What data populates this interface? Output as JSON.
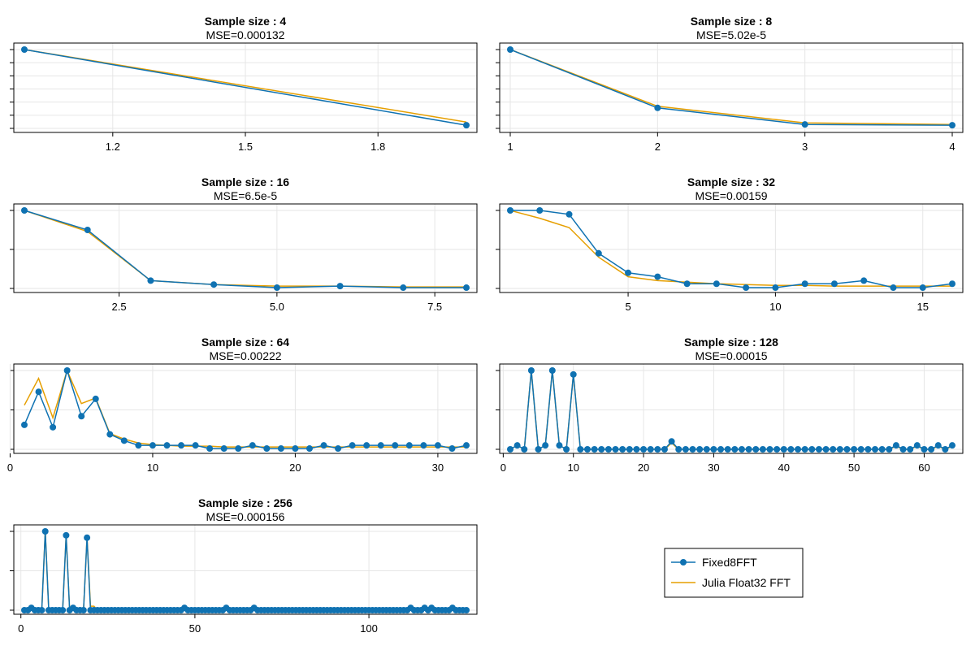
{
  "colors": {
    "fixed": "#0f72b2",
    "julia": "#e69f00",
    "grid": "#e6e6e6",
    "frame": "#000000"
  },
  "legend": {
    "entries": [
      "Fixed8FFT",
      "Julia Float32 FFT"
    ]
  },
  "chart_data": [
    {
      "type": "line",
      "title": "Sample size : 4",
      "subtitle": "MSE=0.000132",
      "xlim": [
        1,
        2
      ],
      "ylim": [
        0,
        1
      ],
      "x_ticks": [
        1.2,
        1.5,
        1.8
      ],
      "x_tick_labels": [
        "1.2",
        "1.5",
        "1.8"
      ],
      "grid": true,
      "x": [
        1,
        2
      ],
      "series": [
        {
          "name": "Fixed8FFT",
          "values": [
            1.0,
            0.04
          ]
        },
        {
          "name": "Julia Float32 FFT",
          "values": [
            1.0,
            0.08
          ]
        }
      ]
    },
    {
      "type": "line",
      "title": "Sample size : 8",
      "subtitle": "MSE=5.02e-5",
      "xlim": [
        1,
        4
      ],
      "ylim": [
        0,
        1
      ],
      "x_ticks": [
        1,
        2,
        3,
        4
      ],
      "x_tick_labels": [
        "1",
        "2",
        "3",
        "4"
      ],
      "grid": true,
      "x": [
        1,
        2,
        3,
        4
      ],
      "series": [
        {
          "name": "Fixed8FFT",
          "values": [
            1.0,
            0.26,
            0.05,
            0.04
          ]
        },
        {
          "name": "Julia Float32 FFT",
          "values": [
            1.0,
            0.28,
            0.07,
            0.05
          ]
        }
      ]
    },
    {
      "type": "line",
      "title": "Sample size : 16",
      "subtitle": "MSE=6.5e-5",
      "xlim": [
        1,
        8
      ],
      "ylim": [
        0,
        1
      ],
      "x_ticks": [
        2.5,
        5.0,
        7.5
      ],
      "x_tick_labels": [
        "2.5",
        "5.0",
        "7.5"
      ],
      "grid": true,
      "x": [
        1,
        2,
        3,
        4,
        5,
        6,
        7,
        8
      ],
      "series": [
        {
          "name": "Fixed8FFT",
          "values": [
            1.0,
            0.75,
            0.1,
            0.05,
            0.01,
            0.03,
            0.01,
            0.01
          ]
        },
        {
          "name": "Julia Float32 FFT",
          "values": [
            1.0,
            0.73,
            0.1,
            0.05,
            0.03,
            0.03,
            0.02,
            0.02
          ]
        }
      ]
    },
    {
      "type": "line",
      "title": "Sample size : 32",
      "subtitle": "MSE=0.00159",
      "xlim": [
        1,
        16
      ],
      "ylim": [
        0,
        1
      ],
      "x_ticks": [
        5,
        10,
        15
      ],
      "x_tick_labels": [
        "5",
        "10",
        "15"
      ],
      "grid": true,
      "x": [
        1,
        2,
        3,
        4,
        5,
        6,
        7,
        8,
        9,
        10,
        11,
        12,
        13,
        14,
        15,
        16
      ],
      "series": [
        {
          "name": "Fixed8FFT",
          "values": [
            1.0,
            1.0,
            0.95,
            0.45,
            0.2,
            0.15,
            0.06,
            0.06,
            0.01,
            0.01,
            0.06,
            0.06,
            0.1,
            0.01,
            0.01,
            0.06
          ]
        },
        {
          "name": "Julia Float32 FFT",
          "values": [
            1.0,
            0.9,
            0.78,
            0.4,
            0.15,
            0.1,
            0.08,
            0.06,
            0.05,
            0.04,
            0.04,
            0.03,
            0.03,
            0.03,
            0.03,
            0.03
          ]
        }
      ]
    },
    {
      "type": "line",
      "title": "Sample size : 64",
      "subtitle": "MSE=0.00222",
      "xlim": [
        1,
        32
      ],
      "ylim": [
        0,
        1
      ],
      "x_ticks": [
        0,
        10,
        20,
        30
      ],
      "x_tick_labels": [
        "0",
        "10",
        "20",
        "30"
      ],
      "grid": true,
      "x": [
        1,
        2,
        3,
        4,
        5,
        6,
        7,
        8,
        9,
        10,
        11,
        12,
        13,
        14,
        15,
        16,
        17,
        18,
        19,
        20,
        21,
        22,
        23,
        24,
        25,
        26,
        27,
        28,
        29,
        30,
        31,
        32
      ],
      "series": [
        {
          "name": "Fixed8FFT",
          "values": [
            0.31,
            0.73,
            0.28,
            1.0,
            0.42,
            0.64,
            0.19,
            0.11,
            0.05,
            0.05,
            0.05,
            0.05,
            0.05,
            0.01,
            0.01,
            0.01,
            0.05,
            0.01,
            0.01,
            0.01,
            0.01,
            0.05,
            0.01,
            0.05,
            0.05,
            0.05,
            0.05,
            0.05,
            0.05,
            0.05,
            0.01,
            0.05
          ]
        },
        {
          "name": "Julia Float32 FFT",
          "values": [
            0.56,
            0.9,
            0.4,
            1.0,
            0.58,
            0.65,
            0.2,
            0.13,
            0.08,
            0.06,
            0.05,
            0.04,
            0.04,
            0.04,
            0.03,
            0.03,
            0.03,
            0.03,
            0.03,
            0.03,
            0.03,
            0.03,
            0.03,
            0.03,
            0.03,
            0.03,
            0.03,
            0.03,
            0.03,
            0.03,
            0.03,
            0.03
          ]
        }
      ]
    },
    {
      "type": "line",
      "title": "Sample size : 128",
      "subtitle": "MSE=0.00015",
      "xlim": [
        1,
        64
      ],
      "ylim": [
        0,
        1
      ],
      "x_ticks": [
        0,
        10,
        20,
        30,
        40,
        50,
        60
      ],
      "x_tick_labels": [
        "0",
        "10",
        "20",
        "30",
        "40",
        "50",
        "60"
      ],
      "grid": true,
      "x": [
        1,
        2,
        3,
        4,
        5,
        6,
        7,
        8,
        9,
        10,
        11,
        12,
        13,
        14,
        15,
        16,
        17,
        18,
        19,
        20,
        21,
        22,
        23,
        24,
        25,
        26,
        27,
        28,
        29,
        30,
        31,
        32,
        33,
        34,
        35,
        36,
        37,
        38,
        39,
        40,
        41,
        42,
        43,
        44,
        45,
        46,
        47,
        48,
        49,
        50,
        51,
        52,
        53,
        54,
        55,
        56,
        57,
        58,
        59,
        60,
        61,
        62,
        63,
        64
      ],
      "series": [
        {
          "name": "Fixed8FFT",
          "values": [
            0.0,
            0.05,
            0.0,
            1.0,
            0.0,
            0.05,
            1.0,
            0.05,
            0.0,
            0.95,
            0.0,
            0.0,
            0.0,
            0.0,
            0.0,
            0.0,
            0.0,
            0.0,
            0.0,
            0.0,
            0.0,
            0.0,
            0.0,
            0.1,
            0.0,
            0.0,
            0.0,
            0.0,
            0.0,
            0.0,
            0.0,
            0.0,
            0.0,
            0.0,
            0.0,
            0.0,
            0.0,
            0.0,
            0.0,
            0.0,
            0.0,
            0.0,
            0.0,
            0.0,
            0.0,
            0.0,
            0.0,
            0.0,
            0.0,
            0.0,
            0.0,
            0.0,
            0.0,
            0.0,
            0.0,
            0.05,
            0.0,
            0.0,
            0.05,
            0.0,
            0.0,
            0.05,
            0.0,
            0.05
          ]
        },
        {
          "name": "Julia Float32 FFT",
          "values": [
            0.0,
            0.05,
            0.0,
            1.0,
            0.0,
            0.05,
            1.0,
            0.05,
            0.0,
            0.95,
            0.0,
            0.0,
            0.0,
            0.0,
            0.0,
            0.0,
            0.0,
            0.0,
            0.0,
            0.0,
            0.0,
            0.0,
            0.0,
            0.08,
            0.0,
            0.0,
            0.0,
            0.0,
            0.0,
            0.0,
            0.0,
            0.0,
            0.0,
            0.0,
            0.0,
            0.0,
            0.0,
            0.0,
            0.0,
            0.0,
            0.0,
            0.0,
            0.0,
            0.0,
            0.0,
            0.0,
            0.0,
            0.0,
            0.0,
            0.0,
            0.0,
            0.0,
            0.0,
            0.0,
            0.0,
            0.04,
            0.0,
            0.0,
            0.04,
            0.0,
            0.0,
            0.04,
            0.0,
            0.04
          ]
        }
      ]
    },
    {
      "type": "line",
      "title": "Sample size : 256",
      "subtitle": "MSE=0.000156",
      "xlim": [
        1,
        128
      ],
      "ylim": [
        0,
        1
      ],
      "x_ticks": [
        0,
        50,
        100
      ],
      "x_tick_labels": [
        "0",
        "50",
        "100"
      ],
      "grid": true,
      "x": [
        1,
        2,
        3,
        4,
        5,
        6,
        7,
        8,
        9,
        10,
        11,
        12,
        13,
        14,
        15,
        16,
        17,
        18,
        19,
        20,
        21,
        22,
        23,
        24,
        25,
        26,
        27,
        28,
        29,
        30,
        31,
        32,
        33,
        34,
        35,
        36,
        37,
        38,
        39,
        40,
        41,
        42,
        43,
        44,
        45,
        46,
        47,
        48,
        49,
        50,
        51,
        52,
        53,
        54,
        55,
        56,
        57,
        58,
        59,
        60,
        61,
        62,
        63,
        64,
        65,
        66,
        67,
        68,
        69,
        70,
        71,
        72,
        73,
        74,
        75,
        76,
        77,
        78,
        79,
        80,
        81,
        82,
        83,
        84,
        85,
        86,
        87,
        88,
        89,
        90,
        91,
        92,
        93,
        94,
        95,
        96,
        97,
        98,
        99,
        100,
        101,
        102,
        103,
        104,
        105,
        106,
        107,
        108,
        109,
        110,
        111,
        112,
        113,
        114,
        115,
        116,
        117,
        118,
        119,
        120,
        121,
        122,
        123,
        124,
        125,
        126,
        127,
        128
      ],
      "series": [
        {
          "name": "Fixed8FFT",
          "values": [
            0.0,
            0.0,
            0.03,
            0.0,
            0.0,
            0.0,
            1.0,
            0.0,
            0.0,
            0.0,
            0.0,
            0.0,
            0.95,
            0.0,
            0.03,
            0.0,
            0.0,
            0.0,
            0.92,
            0.0,
            0.0,
            0.0,
            0.0,
            0.0,
            0.0,
            0.0,
            0.0,
            0.0,
            0.0,
            0.0,
            0.0,
            0.0,
            0.0,
            0.0,
            0.0,
            0.0,
            0.0,
            0.0,
            0.0,
            0.0,
            0.0,
            0.0,
            0.0,
            0.0,
            0.0,
            0.0,
            0.03,
            0.0,
            0.0,
            0.0,
            0.0,
            0.0,
            0.0,
            0.0,
            0.0,
            0.0,
            0.0,
            0.0,
            0.03,
            0.0,
            0.0,
            0.0,
            0.0,
            0.0,
            0.0,
            0.0,
            0.03,
            0.0,
            0.0,
            0.0,
            0.0,
            0.0,
            0.0,
            0.0,
            0.0,
            0.0,
            0.0,
            0.0,
            0.0,
            0.0,
            0.0,
            0.0,
            0.0,
            0.0,
            0.0,
            0.0,
            0.0,
            0.0,
            0.0,
            0.0,
            0.0,
            0.0,
            0.0,
            0.0,
            0.0,
            0.0,
            0.0,
            0.0,
            0.0,
            0.0,
            0.0,
            0.0,
            0.0,
            0.0,
            0.0,
            0.0,
            0.0,
            0.0,
            0.0,
            0.0,
            0.0,
            0.03,
            0.0,
            0.0,
            0.0,
            0.03,
            0.0,
            0.03,
            0.0,
            0.0,
            0.0,
            0.0,
            0.0,
            0.03,
            0.0,
            0.0,
            0.0,
            0.0
          ]
        },
        {
          "name": "Julia Float32 FFT",
          "values": [
            0.0,
            0.0,
            0.03,
            0.0,
            0.0,
            0.0,
            1.0,
            0.0,
            0.0,
            0.0,
            0.0,
            0.0,
            0.95,
            0.0,
            0.03,
            0.0,
            0.0,
            0.0,
            0.92,
            0.05,
            0.05,
            0.0,
            0.0,
            0.0,
            0.0,
            0.0,
            0.0,
            0.0,
            0.0,
            0.0,
            0.0,
            0.0,
            0.0,
            0.0,
            0.0,
            0.0,
            0.0,
            0.0,
            0.0,
            0.0,
            0.0,
            0.0,
            0.0,
            0.0,
            0.0,
            0.0,
            0.02,
            0.0,
            0.0,
            0.0,
            0.0,
            0.0,
            0.0,
            0.0,
            0.0,
            0.0,
            0.0,
            0.0,
            0.02,
            0.0,
            0.0,
            0.0,
            0.0,
            0.0,
            0.0,
            0.0,
            0.02,
            0.0,
            0.0,
            0.0,
            0.0,
            0.0,
            0.0,
            0.0,
            0.0,
            0.0,
            0.0,
            0.0,
            0.0,
            0.0,
            0.0,
            0.0,
            0.0,
            0.0,
            0.0,
            0.0,
            0.0,
            0.0,
            0.0,
            0.0,
            0.0,
            0.0,
            0.0,
            0.0,
            0.0,
            0.0,
            0.0,
            0.0,
            0.0,
            0.0,
            0.0,
            0.0,
            0.0,
            0.0,
            0.0,
            0.0,
            0.0,
            0.0,
            0.0,
            0.0,
            0.0,
            0.02,
            0.0,
            0.0,
            0.0,
            0.02,
            0.0,
            0.02,
            0.0,
            0.0,
            0.0,
            0.0,
            0.0,
            0.02,
            0.0,
            0.0,
            0.0,
            0.0
          ]
        }
      ]
    }
  ]
}
